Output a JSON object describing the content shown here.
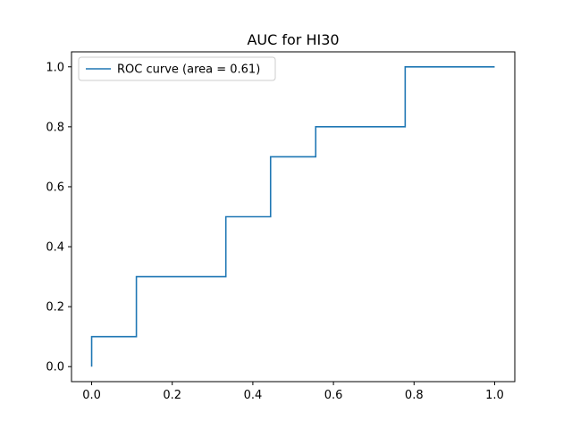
{
  "chart_data": {
    "type": "line",
    "title": "AUC for HI30",
    "xlabel": "",
    "ylabel": "",
    "xlim": [
      -0.05,
      1.05
    ],
    "ylim": [
      -0.05,
      1.05
    ],
    "x_ticks": [
      0.0,
      0.2,
      0.4,
      0.6,
      0.8,
      1.0
    ],
    "y_ticks": [
      0.0,
      0.2,
      0.4,
      0.6,
      0.8,
      1.0
    ],
    "x_tick_labels": [
      "0.0",
      "0.2",
      "0.4",
      "0.6",
      "0.8",
      "1.0"
    ],
    "y_tick_labels": [
      "0.0",
      "0.2",
      "0.4",
      "0.6",
      "0.8",
      "1.0"
    ],
    "grid": false,
    "legend_position": "top-left",
    "series": [
      {
        "name": "ROC curve (area = 0.61)",
        "color": "#1f77b4",
        "x": [
          0.0,
          0.0,
          0.111,
          0.111,
          0.333,
          0.333,
          0.444,
          0.444,
          0.556,
          0.556,
          0.778,
          0.778,
          1.0
        ],
        "y": [
          0.0,
          0.1,
          0.1,
          0.3,
          0.3,
          0.5,
          0.5,
          0.7,
          0.7,
          0.8,
          0.8,
          1.0,
          1.0
        ]
      }
    ]
  }
}
